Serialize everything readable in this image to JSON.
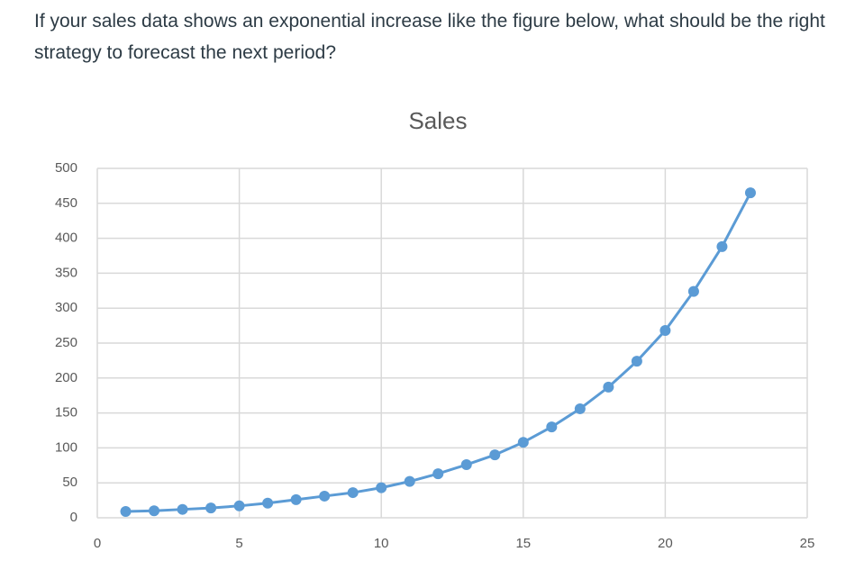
{
  "question": "If your sales data shows an exponential increase like the figure below, what should be the right strategy to forecast the next period?",
  "chart_data": {
    "type": "line",
    "title": "Sales",
    "x": [
      1,
      2,
      3,
      4,
      5,
      6,
      7,
      8,
      9,
      10,
      11,
      12,
      13,
      14,
      15,
      16,
      17,
      18,
      19,
      20,
      21,
      22,
      23
    ],
    "series": [
      {
        "name": "Sales",
        "color": "#5b9bd5",
        "values": [
          9,
          10,
          12,
          14,
          17,
          21,
          26,
          31,
          36,
          43,
          52,
          63,
          76,
          90,
          108,
          130,
          156,
          187,
          224,
          268,
          324,
          388,
          465
        ]
      }
    ],
    "xlim": [
      0,
      25
    ],
    "xticks": [
      0,
      5,
      10,
      15,
      20,
      25
    ],
    "ylim": [
      0,
      500
    ],
    "yticks": [
      0,
      50,
      100,
      150,
      200,
      250,
      300,
      350,
      400,
      450,
      500
    ],
    "grid": true
  }
}
